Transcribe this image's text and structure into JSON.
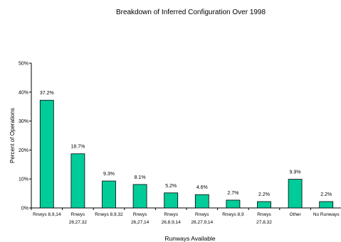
{
  "chart_data": {
    "type": "bar",
    "title": "Breakdown of Inferred Configuration Over 1998",
    "xlabel": "Runways Available",
    "ylabel": "Percent of Operations",
    "ylim": [
      0,
      50
    ],
    "yticks": [
      0,
      10,
      20,
      30,
      40,
      50
    ],
    "ytick_labels": [
      "0%",
      "10%",
      "20%",
      "30%",
      "40%",
      "50%"
    ],
    "grid": false,
    "legend": "none",
    "categories": [
      [
        "Rnwys 8,9,14"
      ],
      [
        "Rnwys",
        "26,27,32"
      ],
      [
        "Rnwys 8,9,32"
      ],
      [
        "Rnwys",
        "26,27,14"
      ],
      [
        "Rnwys",
        "26,8,9,14"
      ],
      [
        "Rnwys",
        "26,27,9,14"
      ],
      [
        "Rnwys 8,9"
      ],
      [
        "Rnwys",
        "27,8,32"
      ],
      [
        "Other"
      ],
      [
        "No Runways"
      ]
    ],
    "values": [
      37.2,
      18.7,
      9.3,
      8.1,
      5.2,
      4.6,
      2.7,
      2.2,
      9.9,
      2.2
    ],
    "data_labels": [
      "37.2%",
      "18.7%",
      "9.3%",
      "8.1%",
      "5.2%",
      "4.6%",
      "2.7%",
      "2.2%",
      "9.9%",
      "2.2%"
    ],
    "bar_color": "#00cc99",
    "bar_edge_color": "#000000"
  }
}
